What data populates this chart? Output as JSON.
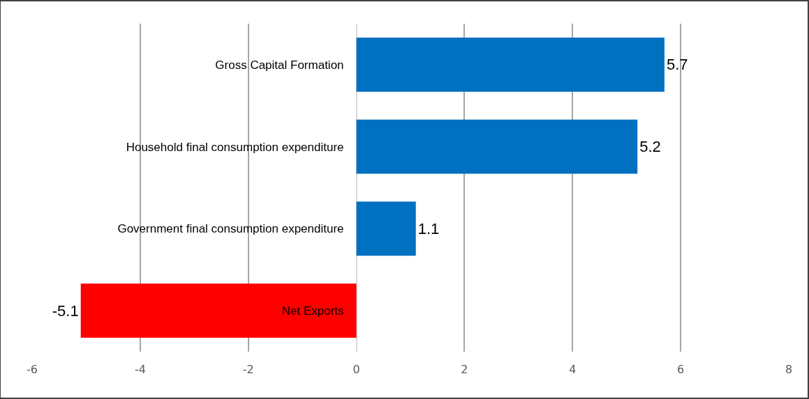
{
  "chart_data": {
    "type": "bar",
    "orientation": "horizontal",
    "categories": [
      "Gross Capital Formation",
      "Household final consumption expenditure",
      "Government final consumption expenditure",
      "Net Exports"
    ],
    "values": [
      5.7,
      5.2,
      1.1,
      -5.1
    ],
    "colors": [
      "#0070c0",
      "#0070c0",
      "#0070c0",
      "#ff0000"
    ],
    "xlim": [
      -6,
      8
    ],
    "xticks": [
      -6,
      -4,
      -2,
      0,
      2,
      4,
      6,
      8
    ],
    "grid": "x",
    "data_labels": true
  }
}
